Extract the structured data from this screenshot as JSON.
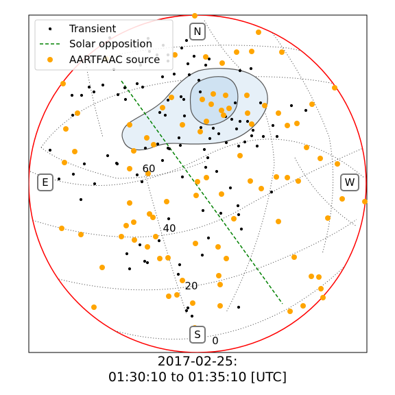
{
  "chart_data": {
    "type": "scatter",
    "projection": "all-sky polar (zenith at center, horizon at edge)",
    "cardinal_labels": [
      "N",
      "E",
      "S",
      "W"
    ],
    "altitude_tick_labels": [
      "60",
      "40",
      "20",
      "0"
    ],
    "grid": "on",
    "legend": {
      "position": "top-left",
      "entries": [
        "Transient",
        "Solar opposition",
        "AARTFAAC source"
      ]
    },
    "colors": {
      "horizon": "#ff0000",
      "solar_opposition": "#008000",
      "aartfaac_source": "#ffa500",
      "transient": "#000000",
      "contour_fill": "#c8dcf0",
      "contour_line": "#666666"
    },
    "series": [
      {
        "name": "Transient",
        "points": [
          [
            74,
            43
          ],
          [
            160,
            55
          ],
          [
            216,
            56
          ],
          [
            272,
            59
          ],
          [
            181,
            63
          ],
          [
            205,
            66
          ],
          [
            238,
            66
          ],
          [
            265,
            70
          ],
          [
            218,
            75
          ],
          [
            229,
            80
          ],
          [
            245,
            80
          ],
          [
            283,
            82
          ],
          [
            305,
            86
          ],
          [
            132,
            89
          ],
          [
            245,
            89
          ],
          [
            274,
            93
          ],
          [
            205,
            95
          ],
          [
            300,
            95
          ],
          [
            366,
            100
          ],
          [
            166,
            101
          ],
          [
            350,
            103
          ],
          [
            254,
            108
          ],
          [
            276,
            109
          ],
          [
            237,
            112
          ],
          [
            290,
            117
          ],
          [
            200,
            122
          ],
          [
            150,
            124
          ],
          [
            130,
            127
          ],
          [
            208,
            127
          ],
          [
            182,
            128
          ],
          [
            137,
            134
          ],
          [
            292,
            134
          ],
          [
            172,
            138
          ],
          [
            105,
            139
          ],
          [
            119,
            139
          ],
          [
            264,
            141
          ],
          [
            183,
            145
          ],
          [
            268,
            145
          ],
          [
            245,
            146
          ],
          [
            343,
            150
          ],
          [
            380,
            150
          ],
          [
            425,
            154
          ],
          [
            446,
            161
          ],
          [
            233,
            164
          ],
          [
            106,
            168
          ],
          [
            241,
            168
          ],
          [
            269,
            169
          ],
          [
            329,
            170
          ],
          [
            338,
            174
          ],
          [
            350,
            177
          ],
          [
            361,
            177
          ],
          [
            398,
            183
          ],
          [
            293,
            186
          ],
          [
            311,
            187
          ],
          [
            345,
            188
          ],
          [
            369,
            190
          ],
          [
            319,
            195
          ],
          [
            367,
            198
          ],
          [
            384,
            199
          ],
          [
            404,
            199
          ],
          [
            261,
            201
          ],
          [
            306,
            202
          ],
          [
            357,
            207
          ],
          [
            330,
            208
          ],
          [
            230,
            210
          ],
          [
            263,
            212
          ],
          [
            348,
            213
          ],
          [
            375,
            213
          ],
          [
            212,
            216
          ],
          [
            245,
            216
          ],
          [
            247,
            217
          ],
          [
            298,
            218
          ],
          [
            73,
            219
          ],
          [
            157,
            227
          ],
          [
            303,
            230
          ],
          [
            237,
            234
          ],
          [
            170,
            238
          ],
          [
            123,
            239
          ],
          [
            171,
            239
          ],
          [
            300,
            244
          ],
          [
            316,
            250
          ],
          [
            107,
            254
          ],
          [
            200,
            255
          ],
          [
            266,
            258
          ],
          [
            86,
            261
          ],
          [
            207,
            265
          ],
          [
            138,
            268
          ],
          [
            336,
            274
          ],
          [
            396,
            280
          ],
          [
            118,
            291
          ],
          [
            347,
            300
          ],
          [
            296,
            307
          ],
          [
            322,
            311
          ],
          [
            348,
            313
          ],
          [
            246,
            319
          ],
          [
            352,
            334
          ],
          [
            304,
            347
          ],
          [
            232,
            351
          ],
          [
            204,
            357
          ],
          [
            185,
            370
          ],
          [
            295,
            372
          ],
          [
            211,
            381
          ],
          [
            215,
            383
          ],
          [
            262,
            386
          ],
          [
            189,
            392
          ],
          [
            260,
            400
          ],
          [
            348,
            448
          ],
          [
            274,
            449
          ],
          [
            272,
            453
          ],
          [
            280,
            461
          ]
        ]
      },
      {
        "name": "Solar opposition",
        "line": [
          [
            177,
            118
          ],
          [
            412,
            443
          ]
        ]
      },
      {
        "name": "AARTFAAC source",
        "points": [
          [
            284,
            23
          ],
          [
            377,
            47
          ],
          [
            345,
            76
          ],
          [
            367,
            75
          ],
          [
            411,
            76
          ],
          [
            255,
            80
          ],
          [
            300,
            83
          ],
          [
            155,
            86
          ],
          [
            324,
            92
          ],
          [
            92,
            122
          ],
          [
            488,
            128
          ],
          [
            311,
            137
          ],
          [
            250,
            142
          ],
          [
            295,
            145
          ],
          [
            329,
            139
          ],
          [
            360,
            139
          ],
          [
            308,
            152
          ],
          [
            386,
            154
          ],
          [
            334,
            158
          ],
          [
            323,
            161
          ],
          [
            237,
            157
          ],
          [
            455,
            152
          ],
          [
            113,
            165
          ],
          [
            361,
            165
          ],
          [
            406,
            165
          ],
          [
            301,
            177
          ],
          [
            326,
            168
          ],
          [
            189,
            182
          ],
          [
            367,
            181
          ],
          [
            266,
            182
          ],
          [
            96,
            188
          ],
          [
            433,
            180
          ],
          [
            419,
            183
          ],
          [
            292,
            192
          ],
          [
            109,
            221
          ],
          [
            224,
            211
          ],
          [
            214,
            201
          ],
          [
            195,
            220
          ],
          [
            467,
            231
          ],
          [
            94,
            237
          ],
          [
            492,
            239
          ],
          [
            350,
            227
          ],
          [
            447,
            215
          ],
          [
            189,
            246
          ],
          [
            216,
            253
          ],
          [
            365,
            264
          ],
          [
            381,
            275
          ],
          [
            403,
            258
          ],
          [
            419,
            259
          ],
          [
            435,
            264
          ],
          [
            301,
            259
          ],
          [
            189,
            296
          ],
          [
            288,
            265
          ],
          [
            243,
            294
          ],
          [
            286,
            285
          ],
          [
            323,
            283
          ],
          [
            218,
            312
          ],
          [
            223,
            317
          ],
          [
            341,
            319
          ],
          [
            90,
            333
          ],
          [
            118,
            342
          ],
          [
            195,
            324
          ],
          [
            177,
            345
          ],
          [
            184,
            329
          ],
          [
            196,
            350
          ],
          [
            227,
            345
          ],
          [
            406,
            323
          ],
          [
            478,
            318
          ],
          [
            499,
            290
          ],
          [
            532,
            294
          ],
          [
            215,
            360
          ],
          [
            285,
            355
          ],
          [
            318,
            360
          ],
          [
            245,
            376
          ],
          [
            233,
            377
          ],
          [
            330,
            377
          ],
          [
            149,
            390
          ],
          [
            429,
            375
          ],
          [
            319,
            402
          ],
          [
            454,
            403
          ],
          [
            465,
            404
          ],
          [
            321,
            415
          ],
          [
            266,
            409
          ],
          [
            468,
            421
          ],
          [
            471,
            434
          ],
          [
            246,
            432
          ],
          [
            258,
            430
          ],
          [
            281,
            442
          ],
          [
            137,
            448
          ],
          [
            321,
            446
          ],
          [
            442,
            446
          ],
          [
            423,
            454
          ],
          [
            284,
            478
          ]
        ]
      }
    ]
  },
  "caption": {
    "line1": "2017-02-25:",
    "line2": "01:30:10 to 01:35:10 [UTC]"
  }
}
